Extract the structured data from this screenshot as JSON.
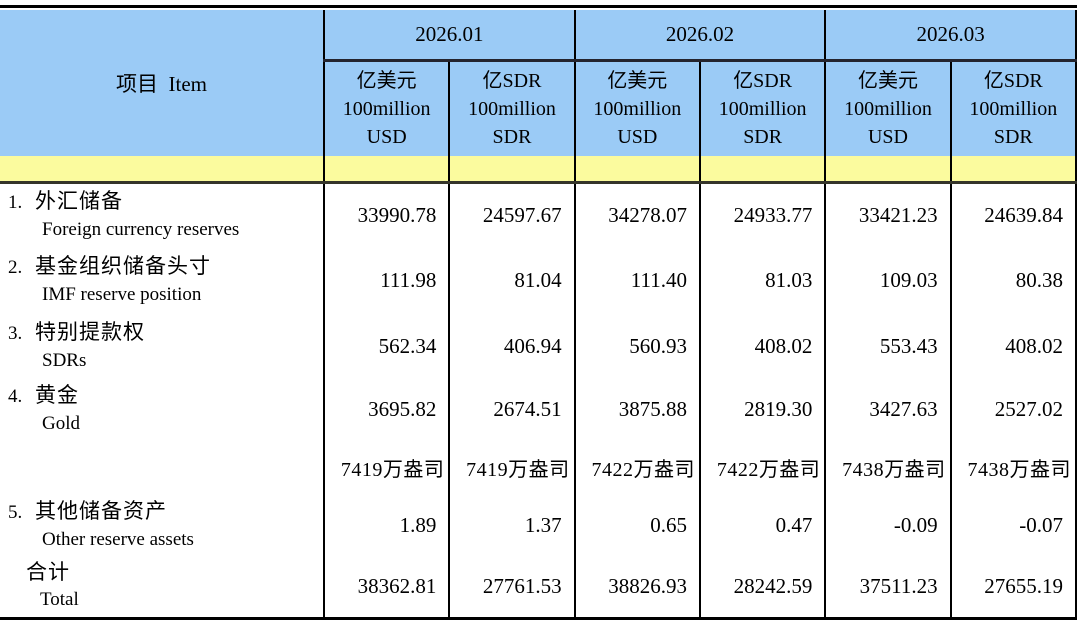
{
  "colors": {
    "header_blue": "#9BCBF6",
    "band_yellow": "#FBFB9E",
    "grid": "#000000"
  },
  "table": {
    "item_header": "项目  Item",
    "months": [
      {
        "label": "2026.01"
      },
      {
        "label": "2026.02"
      },
      {
        "label": "2026.03"
      }
    ],
    "unit_usd": {
      "cn": "亿美元",
      "qty": "100million",
      "code": "USD"
    },
    "unit_sdr": {
      "cn": "亿SDR",
      "qty": "100million",
      "code": "SDR"
    },
    "rows": [
      {
        "no": "1.",
        "cn": "外汇储备",
        "en": "Foreign currency reserves",
        "values": [
          "33990.78",
          "24597.67",
          "34278.07",
          "24933.77",
          "33421.23",
          "24639.84"
        ]
      },
      {
        "no": "2.",
        "cn": "基金组织储备头寸",
        "en": "IMF reserve position",
        "values": [
          "111.98",
          "81.04",
          "111.40",
          "81.03",
          "109.03",
          "80.38"
        ]
      },
      {
        "no": "3.",
        "cn": "特别提款权",
        "en": "SDRs",
        "values": [
          "562.34",
          "406.94",
          "560.93",
          "408.02",
          "553.43",
          "408.02"
        ]
      },
      {
        "no": "4.",
        "cn": "黄金",
        "en": "Gold",
        "values": [
          "3695.82",
          "2674.51",
          "3875.88",
          "2819.30",
          "3427.63",
          "2527.02"
        ]
      },
      {
        "no": "5.",
        "cn": "其他储备资产",
        "en": "Other reserve assets",
        "values": [
          "1.89",
          "1.37",
          "0.65",
          "0.47",
          "-0.09",
          "-0.07"
        ]
      }
    ],
    "gold_ounces": [
      "7419万盎司",
      "7419万盎司",
      "7422万盎司",
      "7422万盎司",
      "7438万盎司",
      "7438万盎司"
    ],
    "total": {
      "cn": "合计",
      "en": "Total",
      "values": [
        "38362.81",
        "27761.53",
        "38826.93",
        "28242.59",
        "37511.23",
        "27655.19"
      ]
    }
  }
}
